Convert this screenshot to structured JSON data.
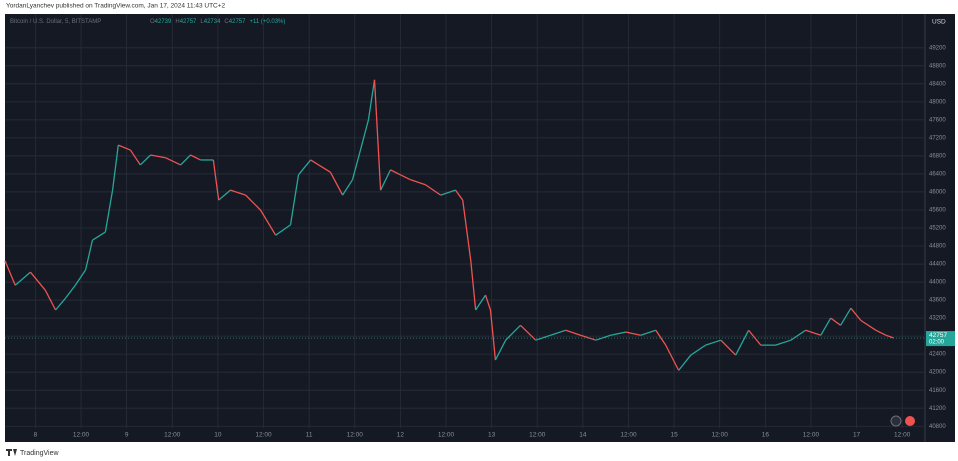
{
  "header": {
    "published": "YordanLyanchev published on TradingView.com, Jan 17, 2024 11:43 UTC+2",
    "brand": "TradingView"
  },
  "chart_data": {
    "type": "line",
    "symbol": "Bitcoin / U.S. Dollar, 5, BITSTAMP",
    "ohlc": [
      {
        "label": "O",
        "value": 42739
      },
      {
        "label": "H",
        "value": 42757
      },
      {
        "label": "L",
        "value": 42734
      },
      {
        "label": "C",
        "value": 42757
      }
    ],
    "change": "+11 (+0.03%)",
    "currency": "USD",
    "last_price": 42757,
    "last_time": "02:00",
    "colors": {
      "up": "#26a69a",
      "down": "#ef5350"
    },
    "grid": true,
    "x": [
      -7.9,
      -5.3,
      -1.3,
      2.6,
      5.3,
      7.9,
      10.5,
      13.2,
      15,
      18.4,
      20.3,
      21.8,
      25,
      27.6,
      30.3,
      34.2,
      38.2,
      40.8,
      43.4,
      46.8,
      48.2,
      51.3,
      55.3,
      59.2,
      63.2,
      67.1,
      69.2,
      72.4,
      74.5,
      77.6,
      80.8,
      83.4,
      85.5,
      87.6,
      89.2,
      90.8,
      93.4,
      96,
      98.7,
      102.6,
      106.6,
      110.5,
      112.4,
      114.5,
      115.8,
      118.4,
      119.7,
      121,
      123.7,
      127.6,
      131.6,
      135.5,
      139.5,
      143.4,
      147.4,
      151.3,
      155.3,
      159.2,
      163.2,
      165.8,
      169.2,
      172.4,
      176.3,
      180.3,
      184.2,
      187.6,
      190.8,
      194.7,
      198.7,
      202.6,
      206.6,
      209.2,
      211.8,
      214.5,
      217.1,
      221.1,
      223.7,
      225.8
    ],
    "values": [
      44450,
      43930,
      44220,
      43820,
      43380,
      43640,
      43930,
      44270,
      44930,
      45110,
      46040,
      47040,
      46930,
      46600,
      46820,
      46760,
      46600,
      46820,
      46710,
      46710,
      45820,
      46040,
      45930,
      45600,
      45040,
      45270,
      46380,
      46710,
      46600,
      46440,
      45930,
      46270,
      46930,
      47600,
      48490,
      46040,
      46490,
      46380,
      46270,
      46160,
      45930,
      46040,
      45820,
      44490,
      43380,
      43710,
      43380,
      42270,
      42710,
      43040,
      42710,
      42820,
      42930,
      42820,
      42710,
      42820,
      42890,
      42820,
      42930,
      42600,
      42040,
      42380,
      42600,
      42710,
      42380,
      42930,
      42600,
      42600,
      42710,
      42930,
      42820,
      43200,
      43040,
      43420,
      43150,
      42930,
      42820,
      42757
    ],
    "xlim": [
      -8,
      234
    ],
    "xticks": [
      {
        "value": 0,
        "label": "8"
      },
      {
        "value": 12,
        "label": "12:00"
      },
      {
        "value": 24,
        "label": "9"
      },
      {
        "value": 36,
        "label": "12:00"
      },
      {
        "value": 48,
        "label": "10"
      },
      {
        "value": 60,
        "label": "12:00"
      },
      {
        "value": 72,
        "label": "11"
      },
      {
        "value": 84,
        "label": "12:00"
      },
      {
        "value": 96,
        "label": "12"
      },
      {
        "value": 108,
        "label": "12:00"
      },
      {
        "value": 120,
        "label": "13"
      },
      {
        "value": 132,
        "label": "12:00"
      },
      {
        "value": 144,
        "label": "14"
      },
      {
        "value": 156,
        "label": "12:00"
      },
      {
        "value": 168,
        "label": "15"
      },
      {
        "value": 180,
        "label": "12:00"
      },
      {
        "value": 192,
        "label": "16"
      },
      {
        "value": 204,
        "label": "12:00"
      },
      {
        "value": 216,
        "label": "17"
      },
      {
        "value": 228,
        "label": "12:00"
      }
    ],
    "ylim": [
      40450,
      49950
    ],
    "yticks": [
      40800,
      41200,
      41600,
      42000,
      42400,
      42800,
      43200,
      43600,
      44000,
      44400,
      44800,
      45200,
      45600,
      46000,
      46400,
      46800,
      47200,
      47600,
      48000,
      48400,
      48800,
      49200
    ]
  }
}
